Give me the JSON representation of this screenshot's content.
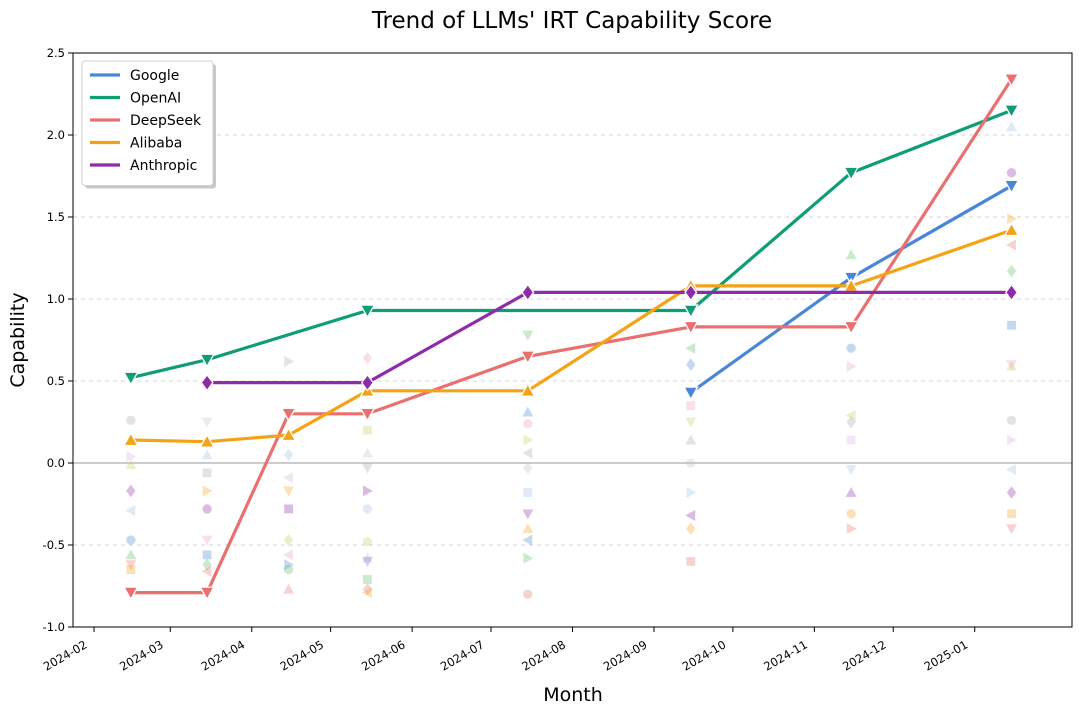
{
  "chart_data": {
    "type": "line",
    "title": "Trend of LLMs' IRT Capability Score",
    "xlabel": "Month",
    "ylabel": "Capability",
    "ylim": [
      -1.0,
      2.5
    ],
    "xlim": [
      "2024-01-24",
      "2025-02-07"
    ],
    "x_ticks": [
      "2024-02",
      "2024-03",
      "2024-04",
      "2024-05",
      "2024-06",
      "2024-07",
      "2024-08",
      "2024-09",
      "2024-10",
      "2024-11",
      "2024-12",
      "2025-01"
    ],
    "y_ticks": [
      "-1.0",
      "-0.5",
      "0.0",
      "0.5",
      "1.0",
      "1.5",
      "2.0",
      "2.5"
    ],
    "grid": "horizontal dashed",
    "zero_line": true,
    "legend_position": "top-left",
    "series": [
      {
        "name": "Google",
        "color": "#4a86d8",
        "marker": "triangle-down",
        "points": [
          [
            "2024-09-15",
            0.43
          ],
          [
            "2024-11-15",
            1.13
          ],
          [
            "2025-01-15",
            1.69
          ]
        ]
      },
      {
        "name": "OpenAI",
        "color": "#0f9d76",
        "marker": "triangle-down",
        "points": [
          [
            "2024-02-15",
            0.52
          ],
          [
            "2024-03-15",
            0.63
          ],
          [
            "2024-05-15",
            0.93
          ],
          [
            "2024-09-15",
            0.93
          ],
          [
            "2024-11-15",
            1.77
          ],
          [
            "2025-01-15",
            2.15
          ]
        ]
      },
      {
        "name": "DeepSeek",
        "color": "#ea7070",
        "marker": "triangle-down",
        "points": [
          [
            "2024-02-15",
            -0.79
          ],
          [
            "2024-03-15",
            -0.79
          ],
          [
            "2024-04-15",
            0.3
          ],
          [
            "2024-05-15",
            0.3
          ],
          [
            "2024-07-15",
            0.65
          ],
          [
            "2024-09-15",
            0.83
          ],
          [
            "2024-11-15",
            0.83
          ],
          [
            "2025-01-15",
            2.34
          ]
        ]
      },
      {
        "name": "Alibaba",
        "color": "#f5a316",
        "marker": "triangle-up",
        "points": [
          [
            "2024-02-15",
            0.14
          ],
          [
            "2024-03-15",
            0.13
          ],
          [
            "2024-04-15",
            0.17
          ],
          [
            "2024-05-15",
            0.44
          ],
          [
            "2024-07-15",
            0.44
          ],
          [
            "2024-09-15",
            1.08
          ],
          [
            "2024-11-15",
            1.08
          ],
          [
            "2025-01-15",
            1.42
          ]
        ]
      },
      {
        "name": "Anthropic",
        "color": "#8e2ba8",
        "marker": "diamond",
        "points": [
          [
            "2024-03-15",
            0.49
          ],
          [
            "2024-05-15",
            0.49
          ],
          [
            "2024-07-15",
            1.04
          ],
          [
            "2024-09-15",
            1.04
          ],
          [
            "2025-01-15",
            1.04
          ]
        ]
      }
    ],
    "background_models": [
      {
        "x": "2024-02-15",
        "y": [
          -0.47,
          -0.56,
          -0.62,
          -0.65,
          -0.17,
          -0.29,
          0.04,
          0.26,
          -0.01
        ]
      },
      {
        "x": "2024-03-15",
        "y": [
          -0.47,
          -0.56,
          -0.62,
          -0.66,
          -0.17,
          -0.28,
          0.05,
          0.25,
          -0.06
        ]
      },
      {
        "x": "2024-04-15",
        "y": [
          -0.47,
          -0.56,
          -0.62,
          -0.65,
          -0.77,
          -0.17,
          -0.28,
          0.05,
          -0.09,
          0.62
        ]
      },
      {
        "x": "2024-05-15",
        "y": [
          -0.48,
          -0.58,
          -0.6,
          -0.71,
          -0.77,
          -0.79,
          -0.17,
          -0.28,
          0.06,
          -0.03,
          0.2,
          0.64
        ]
      },
      {
        "x": "2024-07-15",
        "y": [
          -0.47,
          -0.58,
          -0.8,
          -0.4,
          -0.31,
          -0.18,
          -0.03,
          0.06,
          0.14,
          0.24,
          0.31,
          0.78
        ]
      },
      {
        "x": "2024-09-15",
        "y": [
          -0.6,
          -0.4,
          -0.32,
          -0.18,
          0.0,
          0.14,
          0.25,
          0.35,
          0.6,
          0.7
        ]
      },
      {
        "x": "2024-11-15",
        "y": [
          -0.4,
          -0.31,
          -0.18,
          -0.04,
          0.14,
          0.25,
          0.29,
          0.59,
          0.7,
          1.27
        ]
      },
      {
        "x": "2025-01-15",
        "y": [
          -0.4,
          -0.31,
          -0.18,
          -0.04,
          0.14,
          0.26,
          0.59,
          0.6,
          0.84,
          1.17,
          1.33,
          1.49,
          1.77,
          2.05
        ]
      }
    ]
  }
}
